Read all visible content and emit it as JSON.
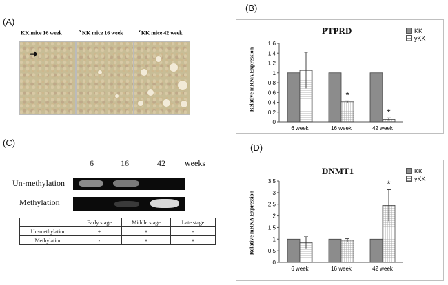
{
  "panel_labels": {
    "a": "(A)",
    "b": "(B)",
    "c": "(C)",
    "d": "(D)"
  },
  "micrographs": [
    {
      "title_prefix": "",
      "title_sup": "",
      "title_main": "KK mice 16 week"
    },
    {
      "title_prefix": "",
      "title_sup": "Y",
      "title_main": "KK mice 16 week"
    },
    {
      "title_prefix": "",
      "title_sup": "Y",
      "title_main": "KK mice 42 week"
    }
  ],
  "gel": {
    "weeks": [
      "6",
      "16",
      "42"
    ],
    "weeks_unit": "weeks",
    "rows": [
      "Un-methylation",
      "Methylation"
    ]
  },
  "meth_table": {
    "headers": [
      "",
      "Early stage",
      "Middle stage",
      "Late stage"
    ],
    "rows": [
      [
        "Un-methylation",
        "+",
        "+",
        "-"
      ],
      [
        "Methylation",
        "-",
        "+",
        "+"
      ]
    ]
  },
  "chart_data": [
    {
      "type": "bar",
      "title": "PTPRD",
      "ylabel": "Relative mRNA Expression",
      "categories": [
        "6 week",
        "16 week",
        "42 week"
      ],
      "series": [
        {
          "name": "KK",
          "values": [
            1,
            1,
            1
          ],
          "errors": [
            0,
            0,
            0
          ]
        },
        {
          "name": "yKK",
          "values": [
            1.05,
            0.41,
            0.05
          ],
          "errors": [
            0.37,
            0.02,
            0.03
          ]
        }
      ],
      "annotations": [
        "",
        "*",
        "*"
      ],
      "ylim": [
        0,
        1.6
      ],
      "yticks": [
        "0",
        "0.2",
        "0.4",
        "0.6",
        "0.8",
        "1",
        "1.2",
        "1.4",
        "1.6"
      ],
      "legend": [
        "KK",
        "yKK"
      ]
    },
    {
      "type": "bar",
      "title": "DNMT1",
      "ylabel": "Relative mRNA Expression",
      "categories": [
        "6 week",
        "16 week",
        "42 week"
      ],
      "series": [
        {
          "name": "KK",
          "values": [
            1,
            1,
            1
          ],
          "errors": [
            0,
            0,
            0
          ]
        },
        {
          "name": "yKK",
          "values": [
            0.85,
            0.95,
            2.45
          ],
          "errors": [
            0.25,
            0.07,
            0.68
          ]
        }
      ],
      "annotations": [
        "",
        "",
        "*"
      ],
      "ylim": [
        0,
        3.5
      ],
      "yticks": [
        "0",
        "0.5",
        "1",
        "1.5",
        "2",
        "2.5",
        "3",
        "3.5"
      ],
      "legend": [
        "KK",
        "yKK"
      ]
    }
  ]
}
